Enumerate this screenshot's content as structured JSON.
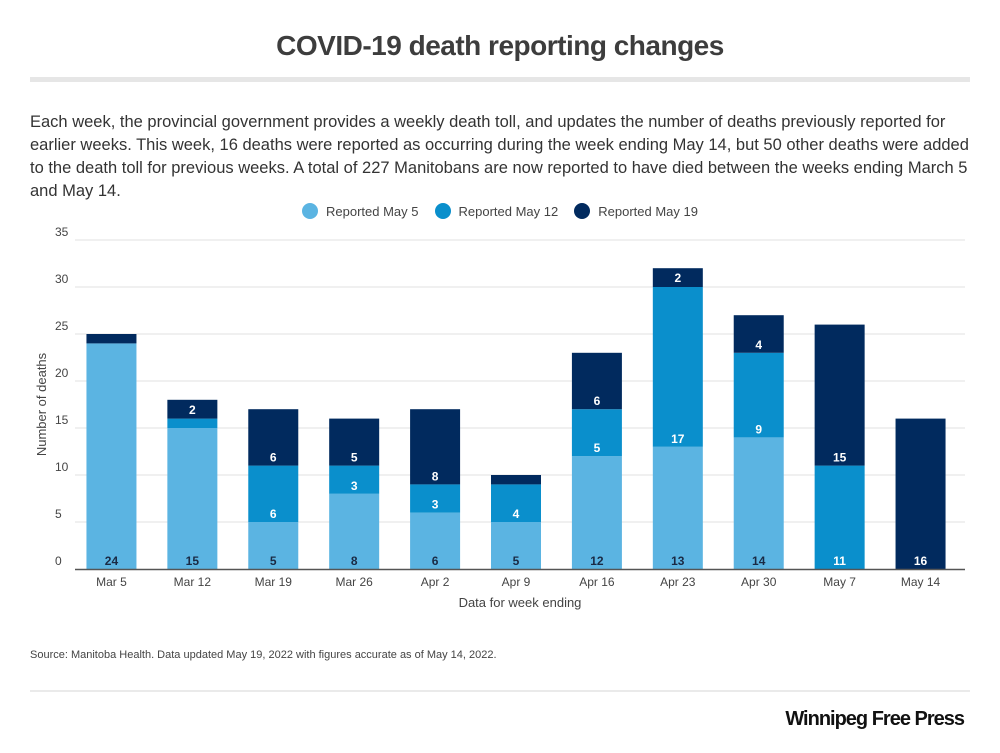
{
  "header": {
    "title": "COVID-19 death reporting changes",
    "description": "Each week, the provincial government provides a weekly death toll, and updates the number of deaths previously reported for earlier weeks. This week, 16 deaths were reported as occurring during the week ending May 14, but 50 other deaths were added to the death toll for previous weeks. A total of 227 Manitobans are now reported to have died between the weeks ending March 5 and May 14."
  },
  "footer": {
    "source": "Source: Manitoba Health. Data updated May 19, 2022 with figures accurate as of May 14, 2022.",
    "logo": "Winnipeg Free Press"
  },
  "chart_data": {
    "type": "bar",
    "stacked": true,
    "title": "COVID-19 death reporting changes",
    "xlabel": "Data for week ending",
    "ylabel": "Number of deaths",
    "ylim": [
      0,
      35
    ],
    "yticks": [
      0,
      5,
      10,
      15,
      20,
      25,
      30,
      35
    ],
    "grid": true,
    "legend_position": "top-center",
    "categories": [
      "Mar 5",
      "Mar 12",
      "Mar 19",
      "Mar 26",
      "Apr 2",
      "Apr 9",
      "Apr 16",
      "Apr 23",
      "Apr 30",
      "May 7",
      "May 14"
    ],
    "series": [
      {
        "name": "Reported May 5",
        "color": "#5bb4e2",
        "label_color": "#1a2a44",
        "values": [
          24,
          15,
          5,
          8,
          6,
          5,
          12,
          13,
          14,
          0,
          0
        ]
      },
      {
        "name": "Reported May 12",
        "color": "#0a8fcc",
        "label_color": "#ffffff",
        "values": [
          0,
          1,
          6,
          3,
          3,
          4,
          5,
          17,
          9,
          11,
          0
        ]
      },
      {
        "name": "Reported May 19",
        "color": "#012a5e",
        "label_color": "#ffffff",
        "values": [
          1,
          2,
          6,
          5,
          8,
          1,
          6,
          2,
          4,
          15,
          16
        ]
      }
    ]
  }
}
